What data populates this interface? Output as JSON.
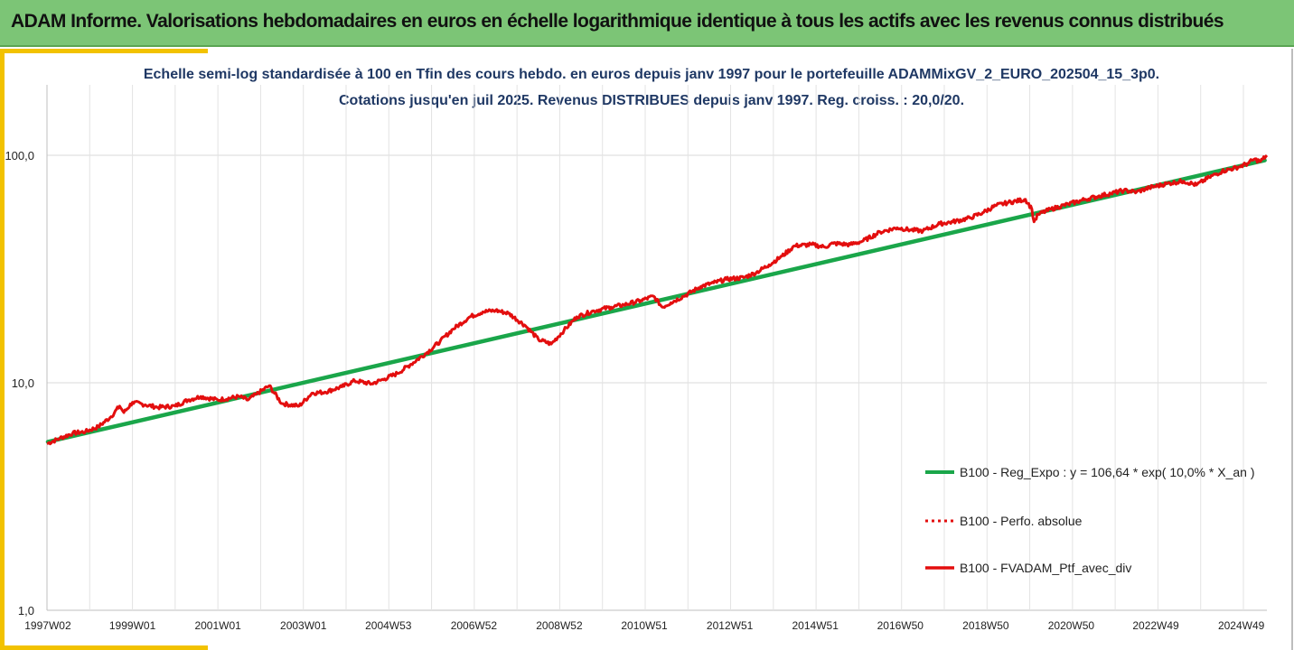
{
  "header": {
    "title": "ADAM Informe. Valorisations hebdomadaires en euros en échelle logarithmique identique à tous les actifs avec les revenus connus distribués"
  },
  "colors": {
    "banner_bg": "#7cc576",
    "accent": "#f2c200",
    "subtitle_text": "#1f3864",
    "series_regression": "#1aa64a",
    "series_portfolio": "#e30e0e"
  },
  "chart_data": {
    "type": "line",
    "subtitle_lines": [
      "Echelle semi-log standardisée  à 100 en Tfin des cours hebdo.  en euros depuis janv 1997 pour le portefeuille ADAMMixGV_2_EURO_202504_15_3p0.",
      "Cotations  jusqu'en juil 2025. Revenus DISTRIBUES depuis janv 1997. Reg. croiss. : 20,0/20."
    ],
    "y_scale": "log",
    "ylim": [
      1,
      200
    ],
    "yticks": [
      {
        "value": 1,
        "label": "1,0"
      },
      {
        "value": 10,
        "label": "10,0"
      },
      {
        "value": 100,
        "label": "100,0"
      }
    ],
    "xlim": [
      1997.0,
      2025.55
    ],
    "x_tick_labels": [
      "1997W02",
      "1999W01",
      "2001W01",
      "2003W01",
      "2004W53",
      "2006W52",
      "2008W52",
      "2010W51",
      "2012W51",
      "2014W51",
      "2016W50",
      "2018W50",
      "2020W50",
      "2022W49",
      "2024W49"
    ],
    "x_tick_years": [
      1997.02,
      1999.0,
      2001.0,
      2003.0,
      2004.99,
      2006.99,
      2008.99,
      2010.98,
      2012.98,
      2014.98,
      2016.97,
      2018.97,
      2020.97,
      2022.95,
      2024.95
    ],
    "grid": {
      "vertical": true,
      "horizontal": true
    },
    "legend_placement": "right",
    "series": [
      {
        "name": "B100 - Reg_Expo : y = 106,64 * exp( 10,0% *  X_an )",
        "style": "solid-thick",
        "x": [
          1997.02,
          2025.5
        ],
        "y": [
          5.5,
          95.0
        ]
      },
      {
        "name": "B100 - Perfo. absolue",
        "style": "dotted",
        "x": [],
        "y": []
      },
      {
        "name": "B100 - FVADAM_Ptf_avec_div",
        "style": "solid",
        "x": [
          1997.0,
          1997.3,
          1997.6,
          1997.9,
          1998.2,
          1998.5,
          1998.7,
          1998.8,
          1999.0,
          1999.3,
          1999.6,
          2000.0,
          2000.3,
          2000.6,
          2001.0,
          2001.5,
          2001.7,
          2001.9,
          2002.2,
          2002.5,
          2002.9,
          2003.2,
          2003.5,
          2003.9,
          2004.2,
          2004.6,
          2004.9,
          2005.2,
          2005.5,
          2005.9,
          2006.2,
          2006.5,
          2006.9,
          2007.2,
          2007.5,
          2007.8,
          2008.2,
          2008.5,
          2008.8,
          2009.1,
          2009.4,
          2009.8,
          2010.2,
          2010.5,
          2010.9,
          2011.2,
          2011.4,
          2011.6,
          2011.9,
          2012.3,
          2012.6,
          2012.9,
          2013.3,
          2013.6,
          2013.9,
          2014.2,
          2014.5,
          2014.9,
          2015.2,
          2015.4,
          2015.8,
          2016.1,
          2016.5,
          2016.9,
          2017.2,
          2017.5,
          2017.9,
          2018.2,
          2018.6,
          2018.9,
          2019.2,
          2019.5,
          2019.9,
          2020.05,
          2020.1,
          2020.2,
          2020.5,
          2020.9,
          2021.3,
          2021.6,
          2021.9,
          2022.2,
          2022.5,
          2022.8,
          2023.2,
          2023.6,
          2023.9,
          2024.2,
          2024.5,
          2024.9,
          2025.1,
          2025.25,
          2025.4,
          2025.55
        ],
        "y": [
          5.4,
          5.7,
          6.0,
          6.1,
          6.4,
          7.1,
          7.9,
          7.4,
          8.2,
          8.0,
          7.8,
          7.9,
          8.4,
          8.7,
          8.4,
          8.7,
          8.4,
          8.9,
          9.7,
          8.1,
          7.9,
          9.0,
          9.1,
          9.6,
          10.2,
          9.9,
          10.4,
          11.0,
          12.0,
          13.6,
          15.2,
          17.2,
          19.5,
          20.5,
          20.8,
          20.2,
          17.8,
          15.5,
          14.8,
          17.0,
          19.5,
          20.7,
          21.5,
          22.0,
          23.0,
          24.0,
          21.5,
          22.5,
          24.0,
          26.5,
          27.5,
          28.5,
          29.0,
          30.5,
          33.0,
          36.0,
          40.0,
          40.5,
          39.5,
          41.0,
          40.5,
          42.0,
          46.0,
          48.0,
          47.0,
          46.5,
          50.0,
          51.0,
          53.0,
          56.0,
          60.0,
          62.0,
          64.0,
          58.0,
          51.0,
          55.0,
          58.0,
          61.0,
          64.0,
          66.0,
          68.0,
          70.0,
          69.0,
          72.0,
          75.0,
          77.0,
          74.0,
          80.0,
          85.0,
          89.0,
          92.0,
          96.0,
          94.0,
          100.0
        ]
      }
    ]
  }
}
